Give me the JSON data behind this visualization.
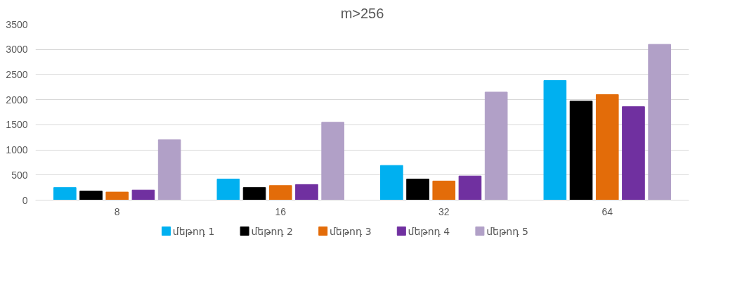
{
  "chart_data": {
    "type": "bar",
    "title": "m>256",
    "categories": [
      "8",
      "16",
      "32",
      "64"
    ],
    "series": [
      {
        "name": "մեթոդ 1",
        "color": "#00b0f0",
        "values": [
          250,
          420,
          690,
          2380
        ]
      },
      {
        "name": "մեթոդ 2",
        "color": "#000000",
        "values": [
          180,
          250,
          420,
          1970
        ]
      },
      {
        "name": "մեթոդ 3",
        "color": "#e36c09",
        "values": [
          160,
          290,
          380,
          2100
        ]
      },
      {
        "name": "մեթոդ 4",
        "color": "#7030a0",
        "values": [
          200,
          310,
          480,
          1860
        ]
      },
      {
        "name": "մեթոդ 5",
        "color": "#b1a0c7",
        "values": [
          1200,
          1550,
          2150,
          3100
        ]
      }
    ],
    "ylim": [
      0,
      3500
    ],
    "yticks": [
      0,
      500,
      1000,
      1500,
      2000,
      2500,
      3000,
      3500
    ],
    "grid": "y",
    "legend": "bottom"
  }
}
